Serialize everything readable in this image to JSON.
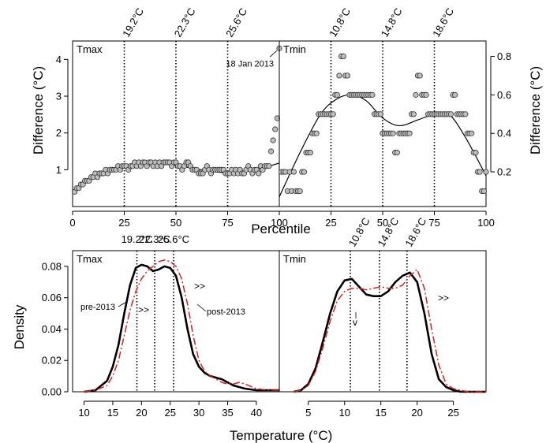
{
  "figure": {
    "shared_xlabel_top": "Percentile",
    "shared_xlabel_bottom": "Temperature (°C)",
    "ylabel_top_left": "Difference (°C)",
    "ylabel_top_right": "Difference (°C)",
    "ylabel_bottom": "Density"
  },
  "chart_data": [
    {
      "type": "scatter",
      "panel_label": "Tmax",
      "ylabel": "Difference (°C)",
      "xlim": [
        0,
        100
      ],
      "ylim": [
        0,
        4.5
      ],
      "x_ticks": [
        0,
        25,
        50,
        75,
        100
      ],
      "y_ticks": [
        1,
        2,
        3,
        4
      ],
      "vlines": [
        {
          "x": 25,
          "label": "19.2°C"
        },
        {
          "x": 50,
          "label": "22.3°C"
        },
        {
          "x": 75,
          "label": "25.6°C"
        }
      ],
      "annotation": {
        "text": "18 Jan 2013",
        "x": 100,
        "y": 4.3
      },
      "points": [
        [
          1,
          0.4
        ],
        [
          2,
          0.5
        ],
        [
          3,
          0.5
        ],
        [
          4,
          0.6
        ],
        [
          5,
          0.6
        ],
        [
          6,
          0.7
        ],
        [
          7,
          0.7
        ],
        [
          8,
          0.7
        ],
        [
          9,
          0.8
        ],
        [
          10,
          0.8
        ],
        [
          11,
          0.9
        ],
        [
          12,
          0.8
        ],
        [
          13,
          0.9
        ],
        [
          14,
          0.9
        ],
        [
          15,
          0.9
        ],
        [
          16,
          1.0
        ],
        [
          17,
          0.9
        ],
        [
          18,
          1.0
        ],
        [
          19,
          1.0
        ],
        [
          20,
          1.0
        ],
        [
          21,
          1.0
        ],
        [
          22,
          1.1
        ],
        [
          23,
          1.0
        ],
        [
          24,
          1.1
        ],
        [
          25,
          1.1
        ],
        [
          26,
          1.1
        ],
        [
          27,
          1.0
        ],
        [
          28,
          1.1
        ],
        [
          29,
          1.1
        ],
        [
          30,
          1.2
        ],
        [
          31,
          1.1
        ],
        [
          32,
          1.2
        ],
        [
          33,
          1.1
        ],
        [
          34,
          1.2
        ],
        [
          35,
          1.2
        ],
        [
          36,
          1.1
        ],
        [
          37,
          1.2
        ],
        [
          38,
          1.2
        ],
        [
          39,
          1.1
        ],
        [
          40,
          1.2
        ],
        [
          41,
          1.1
        ],
        [
          42,
          1.2
        ],
        [
          43,
          1.1
        ],
        [
          44,
          1.2
        ],
        [
          45,
          1.2
        ],
        [
          46,
          1.2
        ],
        [
          47,
          1.2
        ],
        [
          48,
          1.1
        ],
        [
          49,
          1.2
        ],
        [
          50,
          1.2
        ],
        [
          51,
          1.1
        ],
        [
          52,
          1.1
        ],
        [
          53,
          1.0
        ],
        [
          54,
          1.1
        ],
        [
          55,
          1.2
        ],
        [
          56,
          1.2
        ],
        [
          57,
          1.1
        ],
        [
          58,
          1.0
        ],
        [
          59,
          1.0
        ],
        [
          60,
          1.0
        ],
        [
          61,
          0.9
        ],
        [
          62,
          0.9
        ],
        [
          63,
          0.9
        ],
        [
          64,
          1.0
        ],
        [
          65,
          1.1
        ],
        [
          66,
          1.0
        ],
        [
          67,
          0.9
        ],
        [
          68,
          1.0
        ],
        [
          69,
          1.0
        ],
        [
          70,
          1.0
        ],
        [
          71,
          1.0
        ],
        [
          72,
          1.0
        ],
        [
          73,
          1.0
        ],
        [
          74,
          0.9
        ],
        [
          75,
          0.9
        ],
        [
          76,
          0.9
        ],
        [
          77,
          1.0
        ],
        [
          78,
          0.9
        ],
        [
          79,
          1.0
        ],
        [
          80,
          0.9
        ],
        [
          81,
          1.0
        ],
        [
          82,
          0.9
        ],
        [
          83,
          0.9
        ],
        [
          84,
          1.0
        ],
        [
          85,
          1.1
        ],
        [
          86,
          1.0
        ],
        [
          87,
          0.9
        ],
        [
          88,
          1.0
        ],
        [
          89,
          1.0
        ],
        [
          90,
          0.9
        ],
        [
          91,
          1.1
        ],
        [
          92,
          1.0
        ],
        [
          93,
          1.1
        ],
        [
          94,
          1.1
        ],
        [
          95,
          1.1
        ],
        [
          96,
          1.5
        ],
        [
          97,
          1.8
        ],
        [
          98,
          2.1
        ],
        [
          99,
          2.4
        ],
        [
          100,
          4.3
        ]
      ],
      "smooth": [
        [
          1,
          0.45
        ],
        [
          10,
          0.8
        ],
        [
          25,
          1.07
        ],
        [
          37,
          1.15
        ],
        [
          50,
          1.12
        ],
        [
          62,
          1.0
        ],
        [
          75,
          0.92
        ],
        [
          88,
          1.0
        ],
        [
          100,
          1.18
        ]
      ]
    },
    {
      "type": "scatter",
      "panel_label": "Tmin",
      "ylabel": "Difference (°C)",
      "xlim": [
        0,
        100
      ],
      "ylim": [
        0.02,
        0.88
      ],
      "x_ticks": [
        0,
        25,
        50,
        75,
        100
      ],
      "y_ticks": [
        0.2,
        0.4,
        0.6,
        0.8
      ],
      "vlines": [
        {
          "x": 25,
          "label": "10.8°C"
        },
        {
          "x": 50,
          "label": "14.8°C"
        },
        {
          "x": 75,
          "label": "18.6°C"
        }
      ],
      "points": [
        [
          1,
          0.2
        ],
        [
          2,
          0.2
        ],
        [
          3,
          0.2
        ],
        [
          4,
          0.1
        ],
        [
          5,
          0.2
        ],
        [
          6,
          0.1
        ],
        [
          7,
          0.2
        ],
        [
          8,
          0.1
        ],
        [
          9,
          0.1
        ],
        [
          10,
          0.1
        ],
        [
          11,
          0.2
        ],
        [
          12,
          0.2
        ],
        [
          13,
          0.3
        ],
        [
          14,
          0.3
        ],
        [
          15,
          0.3
        ],
        [
          16,
          0.4
        ],
        [
          17,
          0.4
        ],
        [
          18,
          0.4
        ],
        [
          19,
          0.5
        ],
        [
          20,
          0.5
        ],
        [
          21,
          0.5
        ],
        [
          22,
          0.5
        ],
        [
          23,
          0.5
        ],
        [
          24,
          0.5
        ],
        [
          25,
          0.5
        ],
        [
          26,
          0.5
        ],
        [
          27,
          0.6
        ],
        [
          28,
          0.6
        ],
        [
          29,
          0.7
        ],
        [
          30,
          0.8
        ],
        [
          31,
          0.8
        ],
        [
          32,
          0.7
        ],
        [
          33,
          0.7
        ],
        [
          34,
          0.6
        ],
        [
          35,
          0.6
        ],
        [
          36,
          0.6
        ],
        [
          37,
          0.6
        ],
        [
          38,
          0.6
        ],
        [
          39,
          0.6
        ],
        [
          40,
          0.6
        ],
        [
          41,
          0.6
        ],
        [
          42,
          0.6
        ],
        [
          43,
          0.6
        ],
        [
          44,
          0.6
        ],
        [
          45,
          0.6
        ],
        [
          46,
          0.5
        ],
        [
          47,
          0.5
        ],
        [
          48,
          0.5
        ],
        [
          49,
          0.5
        ],
        [
          50,
          0.4
        ],
        [
          51,
          0.4
        ],
        [
          52,
          0.4
        ],
        [
          53,
          0.4
        ],
        [
          54,
          0.4
        ],
        [
          55,
          0.4
        ],
        [
          56,
          0.3
        ],
        [
          57,
          0.3
        ],
        [
          58,
          0.4
        ],
        [
          59,
          0.4
        ],
        [
          60,
          0.4
        ],
        [
          61,
          0.4
        ],
        [
          62,
          0.4
        ],
        [
          63,
          0.4
        ],
        [
          64,
          0.5
        ],
        [
          65,
          0.5
        ],
        [
          66,
          0.6
        ],
        [
          67,
          0.7
        ],
        [
          68,
          0.7
        ],
        [
          69,
          0.6
        ],
        [
          70,
          0.6
        ],
        [
          71,
          0.6
        ],
        [
          72,
          0.5
        ],
        [
          73,
          0.5
        ],
        [
          74,
          0.5
        ],
        [
          75,
          0.5
        ],
        [
          76,
          0.5
        ],
        [
          77,
          0.5
        ],
        [
          78,
          0.5
        ],
        [
          79,
          0.5
        ],
        [
          80,
          0.5
        ],
        [
          81,
          0.5
        ],
        [
          82,
          0.5
        ],
        [
          83,
          0.5
        ],
        [
          84,
          0.6
        ],
        [
          85,
          0.6
        ],
        [
          86,
          0.5
        ],
        [
          87,
          0.5
        ],
        [
          88,
          0.5
        ],
        [
          89,
          0.5
        ],
        [
          90,
          0.5
        ],
        [
          91,
          0.4
        ],
        [
          92,
          0.4
        ],
        [
          93,
          0.4
        ],
        [
          94,
          0.3
        ],
        [
          95,
          0.3
        ],
        [
          96,
          0.2
        ],
        [
          97,
          0.2
        ],
        [
          98,
          0.1
        ],
        [
          99,
          0.1
        ],
        [
          100,
          0.2
        ]
      ],
      "smooth": [
        [
          0,
          0.07
        ],
        [
          10,
          0.3
        ],
        [
          20,
          0.5
        ],
        [
          28,
          0.58
        ],
        [
          35,
          0.6
        ],
        [
          42,
          0.57
        ],
        [
          50,
          0.48
        ],
        [
          58,
          0.44
        ],
        [
          67,
          0.47
        ],
        [
          75,
          0.5
        ],
        [
          82,
          0.5
        ],
        [
          90,
          0.38
        ],
        [
          100,
          0.18
        ]
      ]
    },
    {
      "type": "line",
      "panel_label": "Tmax",
      "ylabel": "Density",
      "xlim": [
        8,
        44
      ],
      "ylim": [
        0,
        0.09
      ],
      "x_ticks": [
        10,
        15,
        20,
        25,
        30,
        35,
        40
      ],
      "y_ticks": [
        0.0,
        0.02,
        0.04,
        0.06,
        0.08
      ],
      "y_tick_labels": [
        "0.00",
        "0.02",
        "0.04",
        "0.06",
        "0.08"
      ],
      "vlines": [
        {
          "x": 19.2,
          "label": "19.2°C"
        },
        {
          "x": 22.3,
          "label": "22.3°C"
        },
        {
          "x": 25.6,
          "label": "25.6°C"
        }
      ],
      "annotations": [
        {
          "text": "pre-2013"
        },
        {
          "text": "post-2013"
        },
        {
          "text": ">>"
        },
        {
          "text": ">>"
        }
      ],
      "series": [
        {
          "name": "pre-2013",
          "color": "#000000",
          "x": [
            10,
            12,
            14,
            15,
            16,
            17,
            18,
            19,
            20,
            21,
            22,
            23,
            24,
            25,
            26,
            27,
            28,
            29,
            30,
            31,
            32,
            33,
            34,
            35,
            36,
            37,
            38,
            40,
            42,
            44
          ],
          "values": [
            0.0,
            0.001,
            0.007,
            0.016,
            0.03,
            0.05,
            0.068,
            0.079,
            0.081,
            0.08,
            0.077,
            0.078,
            0.08,
            0.079,
            0.074,
            0.06,
            0.04,
            0.024,
            0.016,
            0.012,
            0.01,
            0.009,
            0.008,
            0.006,
            0.004,
            0.003,
            0.002,
            0.001,
            0.001,
            0.001
          ]
        },
        {
          "name": "post-2013",
          "color": "#d62020",
          "dashed": true,
          "x": [
            10,
            12,
            14,
            15,
            16,
            17,
            18,
            19,
            20,
            21,
            22,
            23,
            24,
            25,
            26,
            27,
            28,
            29,
            30,
            31,
            32,
            33,
            34,
            35,
            36,
            37,
            38,
            40,
            42,
            44
          ],
          "values": [
            0.0,
            0.001,
            0.004,
            0.01,
            0.02,
            0.036,
            0.052,
            0.064,
            0.072,
            0.077,
            0.08,
            0.083,
            0.084,
            0.083,
            0.08,
            0.072,
            0.056,
            0.036,
            0.02,
            0.013,
            0.01,
            0.008,
            0.006,
            0.005,
            0.005,
            0.006,
            0.005,
            0.002,
            0.001,
            0.001
          ]
        }
      ]
    },
    {
      "type": "line",
      "panel_label": "Tmin",
      "xlim": [
        1,
        29.5
      ],
      "ylim": [
        0,
        0.09
      ],
      "x_ticks": [
        5,
        10,
        15,
        20,
        25
      ],
      "vlines": [
        {
          "x": 10.8,
          "label": "10.8°C"
        },
        {
          "x": 14.8,
          "label": "14.8°C"
        },
        {
          "x": 18.6,
          "label": "18.6°C"
        }
      ],
      "annotations": [
        {
          "text": ">>"
        },
        {
          "text": "v"
        }
      ],
      "series": [
        {
          "name": "pre-2013",
          "color": "#000000",
          "x": [
            3,
            4,
            5,
            6,
            7,
            8,
            9,
            10,
            11,
            12,
            13,
            14,
            15,
            16,
            17,
            18,
            19,
            20,
            21,
            22,
            23,
            24,
            25,
            26,
            27,
            29.5
          ],
          "values": [
            0.0,
            0.001,
            0.005,
            0.015,
            0.032,
            0.05,
            0.064,
            0.071,
            0.072,
            0.067,
            0.062,
            0.061,
            0.061,
            0.064,
            0.07,
            0.074,
            0.076,
            0.07,
            0.05,
            0.024,
            0.008,
            0.003,
            0.001,
            0.0,
            0.0,
            0.0
          ]
        },
        {
          "name": "post-2013",
          "color": "#d62020",
          "dashed": true,
          "x": [
            3,
            4,
            5,
            6,
            7,
            8,
            9,
            10,
            11,
            12,
            13,
            14,
            15,
            16,
            17,
            18,
            19,
            20,
            21,
            22,
            23,
            24,
            25,
            26,
            27,
            29.5
          ],
          "values": [
            0.0,
            0.001,
            0.004,
            0.013,
            0.028,
            0.045,
            0.058,
            0.064,
            0.066,
            0.066,
            0.065,
            0.066,
            0.067,
            0.066,
            0.066,
            0.068,
            0.074,
            0.078,
            0.066,
            0.04,
            0.017,
            0.005,
            0.002,
            0.001,
            0.0,
            0.0
          ]
        }
      ]
    }
  ]
}
